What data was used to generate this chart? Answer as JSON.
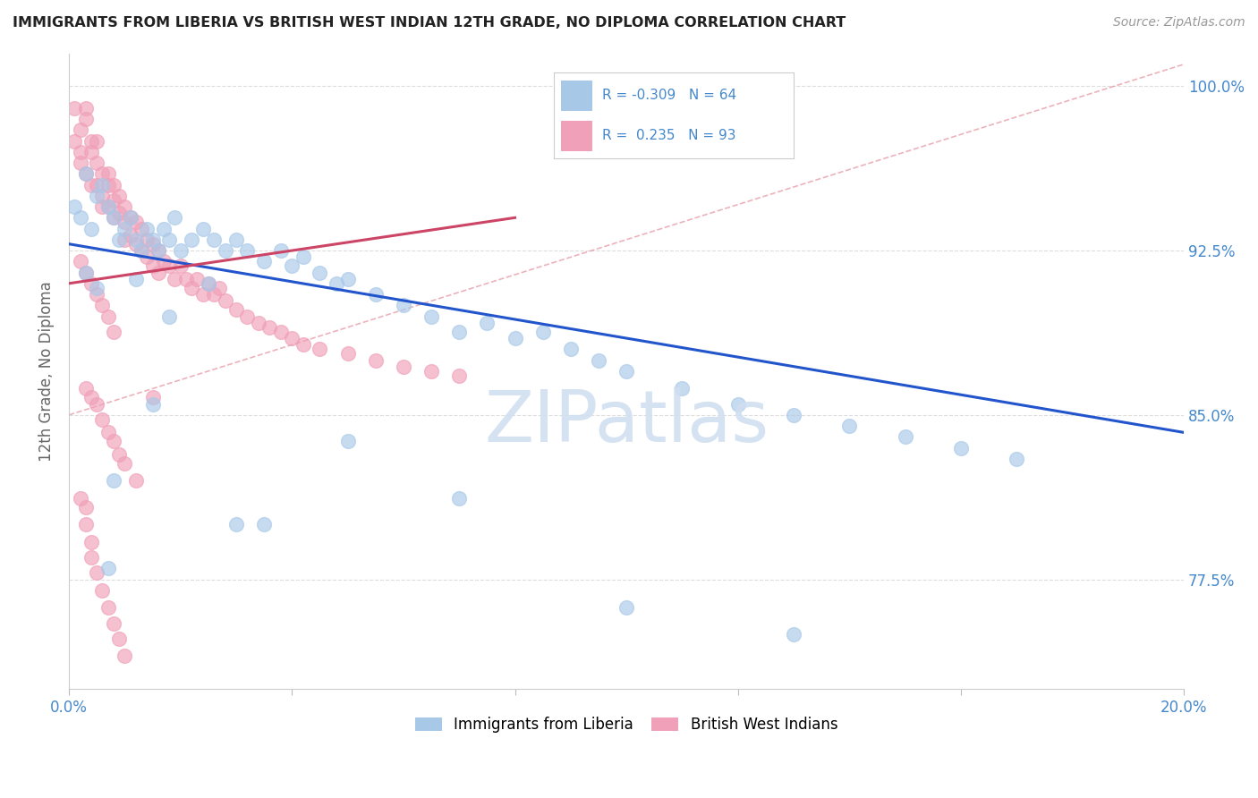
{
  "title": "IMMIGRANTS FROM LIBERIA VS BRITISH WEST INDIAN 12TH GRADE, NO DIPLOMA CORRELATION CHART",
  "source": "Source: ZipAtlas.com",
  "ylabel": "12th Grade, No Diploma",
  "xlim": [
    0.0,
    0.2
  ],
  "ylim": [
    0.725,
    1.015
  ],
  "xtick_positions": [
    0.0,
    0.04,
    0.08,
    0.12,
    0.16,
    0.2
  ],
  "xticklabels": [
    "0.0%",
    "",
    "",
    "",
    "",
    "20.0%"
  ],
  "ytick_positions": [
    0.775,
    0.85,
    0.925,
    1.0
  ],
  "ytick_labels": [
    "77.5%",
    "85.0%",
    "92.5%",
    "100.0%"
  ],
  "blue_color": "#a8c8e8",
  "pink_color": "#f0a0b8",
  "blue_line_color": "#2255cc",
  "pink_line_color": "#cc4466",
  "axis_label_color": "#4488cc",
  "watermark_color": "#d0dff0",
  "blue_line_x0": 0.0,
  "blue_line_y0": 0.928,
  "blue_line_x1": 0.2,
  "blue_line_y1": 0.842,
  "pink_line_x0": 0.0,
  "pink_line_y0": 0.91,
  "pink_line_x1": 0.08,
  "pink_line_y1": 0.94,
  "diag_line_x0": 0.0,
  "diag_line_y0": 0.85,
  "diag_line_x1": 0.2,
  "diag_line_y1": 1.01,
  "legend_r_blue": "R = -0.309",
  "legend_n_blue": "N = 64",
  "legend_r_pink": "R =  0.235",
  "legend_n_pink": "N = 93",
  "blue_x": [
    0.001,
    0.002,
    0.003,
    0.004,
    0.005,
    0.006,
    0.007,
    0.008,
    0.009,
    0.01,
    0.011,
    0.012,
    0.013,
    0.014,
    0.015,
    0.016,
    0.017,
    0.018,
    0.019,
    0.02,
    0.022,
    0.024,
    0.026,
    0.028,
    0.03,
    0.032,
    0.035,
    0.038,
    0.04,
    0.042,
    0.045,
    0.048,
    0.05,
    0.055,
    0.06,
    0.065,
    0.07,
    0.075,
    0.08,
    0.085,
    0.09,
    0.095,
    0.1,
    0.11,
    0.12,
    0.13,
    0.14,
    0.15,
    0.16,
    0.17,
    0.003,
    0.005,
    0.008,
    0.012,
    0.018,
    0.025,
    0.035,
    0.05,
    0.07,
    0.1,
    0.13,
    0.007,
    0.015,
    0.03
  ],
  "blue_y": [
    0.945,
    0.94,
    0.96,
    0.935,
    0.95,
    0.955,
    0.945,
    0.94,
    0.93,
    0.935,
    0.94,
    0.93,
    0.925,
    0.935,
    0.93,
    0.925,
    0.935,
    0.93,
    0.94,
    0.925,
    0.93,
    0.935,
    0.93,
    0.925,
    0.93,
    0.925,
    0.92,
    0.925,
    0.918,
    0.922,
    0.915,
    0.91,
    0.912,
    0.905,
    0.9,
    0.895,
    0.888,
    0.892,
    0.885,
    0.888,
    0.88,
    0.875,
    0.87,
    0.862,
    0.855,
    0.85,
    0.845,
    0.84,
    0.835,
    0.83,
    0.915,
    0.908,
    0.82,
    0.912,
    0.895,
    0.91,
    0.8,
    0.838,
    0.812,
    0.762,
    0.75,
    0.78,
    0.855,
    0.8
  ],
  "pink_x": [
    0.001,
    0.001,
    0.002,
    0.002,
    0.002,
    0.003,
    0.003,
    0.003,
    0.004,
    0.004,
    0.004,
    0.005,
    0.005,
    0.005,
    0.006,
    0.006,
    0.006,
    0.007,
    0.007,
    0.007,
    0.008,
    0.008,
    0.008,
    0.009,
    0.009,
    0.01,
    0.01,
    0.01,
    0.011,
    0.011,
    0.012,
    0.012,
    0.013,
    0.013,
    0.014,
    0.014,
    0.015,
    0.015,
    0.016,
    0.016,
    0.017,
    0.018,
    0.019,
    0.02,
    0.021,
    0.022,
    0.023,
    0.024,
    0.025,
    0.026,
    0.027,
    0.028,
    0.03,
    0.032,
    0.034,
    0.036,
    0.038,
    0.04,
    0.042,
    0.045,
    0.05,
    0.055,
    0.06,
    0.065,
    0.07,
    0.002,
    0.003,
    0.004,
    0.005,
    0.006,
    0.007,
    0.008,
    0.003,
    0.004,
    0.005,
    0.006,
    0.007,
    0.008,
    0.009,
    0.01,
    0.002,
    0.003,
    0.003,
    0.004,
    0.004,
    0.005,
    0.006,
    0.007,
    0.008,
    0.009,
    0.01,
    0.012,
    0.015
  ],
  "pink_y": [
    0.99,
    0.975,
    0.98,
    0.97,
    0.965,
    0.99,
    0.985,
    0.96,
    0.975,
    0.97,
    0.955,
    0.975,
    0.965,
    0.955,
    0.96,
    0.95,
    0.945,
    0.96,
    0.955,
    0.945,
    0.955,
    0.948,
    0.94,
    0.95,
    0.942,
    0.945,
    0.938,
    0.93,
    0.94,
    0.932,
    0.938,
    0.928,
    0.935,
    0.925,
    0.93,
    0.922,
    0.928,
    0.918,
    0.925,
    0.915,
    0.92,
    0.918,
    0.912,
    0.918,
    0.912,
    0.908,
    0.912,
    0.905,
    0.91,
    0.905,
    0.908,
    0.902,
    0.898,
    0.895,
    0.892,
    0.89,
    0.888,
    0.885,
    0.882,
    0.88,
    0.878,
    0.875,
    0.872,
    0.87,
    0.868,
    0.92,
    0.915,
    0.91,
    0.905,
    0.9,
    0.895,
    0.888,
    0.862,
    0.858,
    0.855,
    0.848,
    0.842,
    0.838,
    0.832,
    0.828,
    0.812,
    0.808,
    0.8,
    0.792,
    0.785,
    0.778,
    0.77,
    0.762,
    0.755,
    0.748,
    0.74,
    0.82,
    0.858
  ]
}
